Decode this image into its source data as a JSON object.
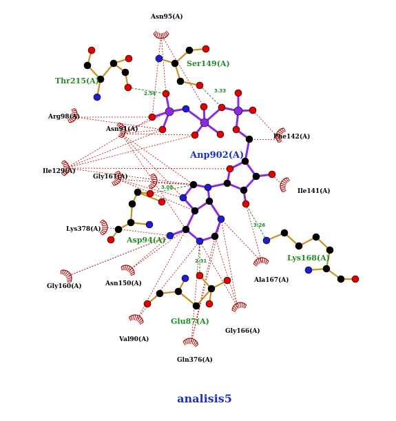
{
  "caption": "analisis5",
  "ligand": {
    "name": "Anp902(A)"
  },
  "hbond_residues": [
    {
      "id": "thr215",
      "name": "Thr215(A)"
    },
    {
      "id": "ser149",
      "name": "Ser149(A)"
    },
    {
      "id": "asp94",
      "name": "Asp94(A)"
    },
    {
      "id": "lys168",
      "name": "Lys168(A)"
    },
    {
      "id": "glu87",
      "name": "Glu87(A)"
    }
  ],
  "hydrophobic_residues": [
    {
      "id": "asn95",
      "name": "Asn95(A)"
    },
    {
      "id": "arg98",
      "name": "Arg98(A)"
    },
    {
      "id": "asn91",
      "name": "Asn91(A)"
    },
    {
      "id": "phe142",
      "name": "Phe142(A)"
    },
    {
      "id": "ile129",
      "name": "Ile129(A)"
    },
    {
      "id": "gly161",
      "name": "Gly161(A)"
    },
    {
      "id": "ile141",
      "name": "Ile141(A)"
    },
    {
      "id": "lys378",
      "name": "Lys378(A)"
    },
    {
      "id": "gly160",
      "name": "Gly160(A)"
    },
    {
      "id": "asn150",
      "name": "Asn150(A)"
    },
    {
      "id": "ala167",
      "name": "Ala167(A)"
    },
    {
      "id": "val90",
      "name": "Val90(A)"
    },
    {
      "id": "gly166",
      "name": "Gly166(A)"
    },
    {
      "id": "gln376",
      "name": "Gln376(A)"
    }
  ],
  "hbond_distances": [
    {
      "id": "d1",
      "value": "2.54"
    },
    {
      "id": "d2",
      "value": "3.33"
    },
    {
      "id": "d3",
      "value": "3.08"
    },
    {
      "id": "d4",
      "value": "3.26"
    },
    {
      "id": "d5",
      "value": "2.31"
    }
  ],
  "colors": {
    "ligand_bond": "#8a2be2",
    "residue_bond": "#c8901e",
    "carbon": "#000000",
    "nitrogen": "#1e1ecc",
    "oxygen": "#e00000",
    "phosphorus": "#8a2be2",
    "hbond": "#228b22",
    "hydrophobic_contact": "#b00000",
    "hbond_label": "#228b22",
    "ligand_label": "#1a2fc8"
  }
}
